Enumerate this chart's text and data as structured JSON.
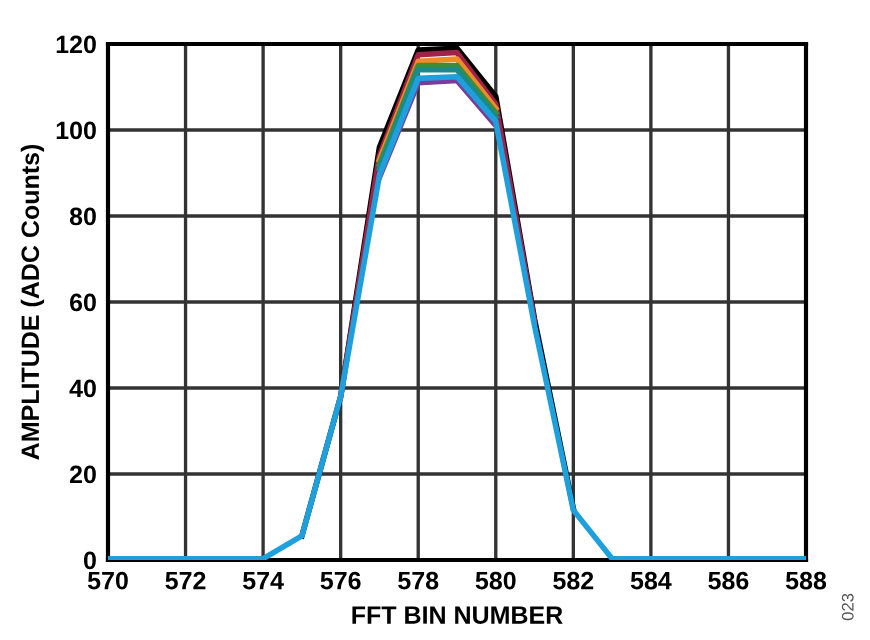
{
  "chart_data": {
    "type": "line",
    "xlabel": "FFT BIN NUMBER",
    "ylabel": "AMPLITUDE (ADC Counts)",
    "annotations": [
      "023"
    ],
    "x": [
      570,
      571,
      572,
      573,
      574,
      575,
      576,
      577,
      578,
      579,
      580,
      581,
      582,
      583,
      584,
      585,
      586,
      587,
      588
    ],
    "xlim": [
      570,
      588
    ],
    "xticks": [
      570,
      572,
      574,
      576,
      578,
      580,
      582,
      584,
      586,
      588
    ],
    "ylim": [
      0,
      120
    ],
    "yticks": [
      0,
      20,
      40,
      60,
      80,
      100,
      120
    ],
    "grid": true,
    "marker": "none",
    "line_style": "solid",
    "series": [
      {
        "color": "#000000",
        "values": [
          null,
          null,
          null,
          null,
          null,
          5.6,
          38,
          96,
          118.6,
          119,
          107.8,
          56,
          12,
          null,
          null,
          null,
          null,
          null,
          null
        ]
      },
      {
        "color": "#a0224a",
        "values": [
          null,
          null,
          null,
          null,
          null,
          null,
          38,
          94,
          117.5,
          118,
          106,
          55.5,
          null,
          null,
          null,
          null,
          null,
          null,
          null
        ]
      },
      {
        "color": "#f08c28",
        "values": [
          null,
          null,
          null,
          null,
          null,
          null,
          null,
          93,
          116,
          116.5,
          105,
          null,
          null,
          null,
          null,
          null,
          null,
          null,
          null
        ]
      },
      {
        "color": "#3c8c3c",
        "values": [
          null,
          null,
          null,
          null,
          null,
          null,
          null,
          92,
          115,
          115,
          104,
          null,
          null,
          null,
          null,
          null,
          null,
          null,
          null
        ]
      },
      {
        "color": "#1a8a8a",
        "values": [
          null,
          null,
          null,
          null,
          null,
          null,
          null,
          91,
          114,
          114,
          103,
          null,
          null,
          null,
          null,
          null,
          null,
          null,
          null
        ]
      },
      {
        "color": "#7a3c9a",
        "values": [
          null,
          null,
          null,
          null,
          null,
          null,
          null,
          89,
          111,
          111.5,
          101,
          null,
          null,
          null,
          null,
          null,
          null,
          null,
          null
        ]
      },
      {
        "color": "#1ea0dc",
        "values": [
          0.3,
          0.3,
          0.3,
          0.3,
          0.3,
          5.6,
          38,
          89.5,
          112,
          112.4,
          102,
          54.5,
          11.6,
          0.3,
          0.3,
          0.3,
          0.3,
          0.3,
          0.3
        ]
      }
    ]
  }
}
